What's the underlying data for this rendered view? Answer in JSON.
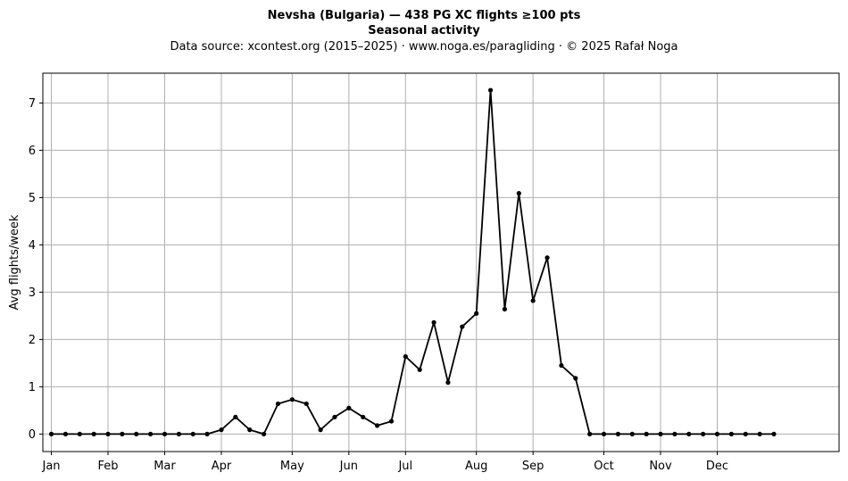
{
  "chart_data": {
    "type": "line",
    "title": "Nevsha (Bulgaria)  —  438 PG XC flights ≥100 pts",
    "subtitle": "Seasonal activity",
    "source": "Data source: xcontest.org (2015–2025)  ·  www.noga.es/paragliding  ·  © 2025 Rafał Noga",
    "ylabel": "Avg flights/week",
    "xlabel": "",
    "xlim": [
      -0.6,
      55.6
    ],
    "ylim": [
      -0.37,
      7.63
    ],
    "yticks": [
      0,
      1,
      2,
      3,
      4,
      5,
      6,
      7
    ],
    "month_ticks": [
      {
        "label": "Jan",
        "week": 0
      },
      {
        "label": "Feb",
        "week": 4
      },
      {
        "label": "Mar",
        "week": 8
      },
      {
        "label": "Apr",
        "week": 12
      },
      {
        "label": "May",
        "week": 17
      },
      {
        "label": "Jun",
        "week": 21
      },
      {
        "label": "Jul",
        "week": 25
      },
      {
        "label": "Aug",
        "week": 30
      },
      {
        "label": "Sep",
        "week": 34
      },
      {
        "label": "Oct",
        "week": 39
      },
      {
        "label": "Nov",
        "week": 43
      },
      {
        "label": "Dec",
        "week": 47
      }
    ],
    "grid": true,
    "series": [
      {
        "color": "#000000",
        "x": [
          0,
          1,
          2,
          3,
          4,
          5,
          6,
          7,
          8,
          9,
          10,
          11,
          12,
          13,
          14,
          15,
          16,
          17,
          18,
          19,
          20,
          21,
          22,
          23,
          24,
          25,
          26,
          27,
          28,
          29,
          30,
          31,
          32,
          33,
          34,
          35,
          36,
          37,
          38,
          39,
          40,
          41,
          42,
          43,
          44,
          45,
          46,
          47,
          48,
          49,
          50,
          51
        ],
        "values": [
          0,
          0,
          0,
          0,
          0,
          0,
          0,
          0,
          0,
          0,
          0,
          0,
          0.09,
          0.36,
          0.09,
          0,
          0.64,
          0.73,
          0.64,
          0.09,
          0.36,
          0.55,
          0.36,
          0.18,
          0.27,
          1.64,
          1.36,
          2.36,
          1.09,
          2.27,
          2.55,
          7.27,
          2.64,
          5.09,
          2.82,
          3.73,
          1.45,
          1.18,
          0,
          0,
          0,
          0,
          0,
          0,
          0,
          0,
          0,
          0,
          0,
          0,
          0,
          0
        ]
      }
    ]
  }
}
